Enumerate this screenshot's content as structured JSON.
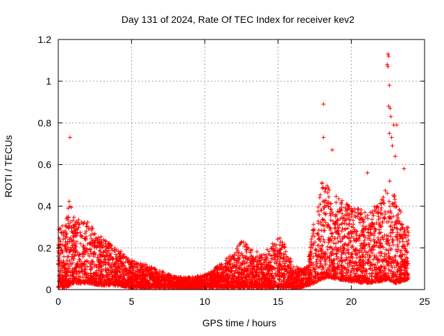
{
  "chart_data": {
    "type": "scatter",
    "title": "Day 131 of 2024, Rate Of TEC Index for receiver kev2",
    "xlabel": "GPS time / hours",
    "ylabel": "ROTI / TECUs",
    "xlim": [
      0,
      25
    ],
    "ylim": [
      0,
      1.2
    ],
    "xticks": [
      0,
      5,
      10,
      15,
      20,
      25
    ],
    "xtick_labels": [
      "0",
      "5",
      "10",
      "15",
      "20",
      "25"
    ],
    "yticks": [
      0,
      0.2,
      0.4,
      0.6,
      0.8,
      1.0,
      1.2
    ],
    "ytick_labels": [
      "0",
      "0.2",
      "0.4",
      "0.6",
      "0.8",
      "1",
      "1.2"
    ],
    "grid": true,
    "marker": "+",
    "series": [
      {
        "name": "ROTI",
        "color": "#ff0000",
        "envelope": {
          "description": "approximate visible band of the dense point cloud (hour, low, high)",
          "hours": [
            0,
            0.5,
            0.8,
            1,
            2,
            3,
            4,
            5,
            6,
            7,
            8,
            9,
            10,
            11,
            12,
            12.5,
            13,
            14,
            15,
            15.5,
            16,
            16.5,
            17,
            17.5,
            18,
            18.5,
            19,
            20,
            21,
            22,
            22.5,
            23,
            23.5,
            23.9
          ],
          "low": [
            0.01,
            0.01,
            0.02,
            0.03,
            0.03,
            0.02,
            0.02,
            0.01,
            0.01,
            0.01,
            0.01,
            0.01,
            0.01,
            0.01,
            0.01,
            0.01,
            0.01,
            0.01,
            0.01,
            0.01,
            0.01,
            0.01,
            0.02,
            0.03,
            0.05,
            0.06,
            0.05,
            0.04,
            0.03,
            0.04,
            0.05,
            0.03,
            0.04,
            0.05
          ],
          "high": [
            0.3,
            0.32,
            0.48,
            0.35,
            0.33,
            0.25,
            0.2,
            0.14,
            0.12,
            0.09,
            0.06,
            0.06,
            0.07,
            0.12,
            0.18,
            0.25,
            0.2,
            0.17,
            0.26,
            0.22,
            0.12,
            0.1,
            0.12,
            0.35,
            0.52,
            0.5,
            0.45,
            0.4,
            0.38,
            0.42,
            0.55,
            0.45,
            0.35,
            0.3
          ]
        },
        "notable_points": [
          {
            "x": 0.8,
            "y": 0.73
          },
          {
            "x": 18.1,
            "y": 0.89
          },
          {
            "x": 18.1,
            "y": 0.73
          },
          {
            "x": 18.7,
            "y": 0.67
          },
          {
            "x": 22.5,
            "y": 1.13
          },
          {
            "x": 22.55,
            "y": 1.12
          },
          {
            "x": 22.45,
            "y": 1.08
          },
          {
            "x": 22.5,
            "y": 1.07
          },
          {
            "x": 22.6,
            "y": 0.98
          },
          {
            "x": 22.55,
            "y": 0.88
          },
          {
            "x": 22.65,
            "y": 0.87
          },
          {
            "x": 22.7,
            "y": 0.83
          },
          {
            "x": 22.9,
            "y": 0.79
          },
          {
            "x": 23.1,
            "y": 0.79
          },
          {
            "x": 22.6,
            "y": 0.75
          },
          {
            "x": 22.75,
            "y": 0.73
          },
          {
            "x": 22.8,
            "y": 0.69
          },
          {
            "x": 23.0,
            "y": 0.64
          },
          {
            "x": 23.6,
            "y": 0.58
          },
          {
            "x": 21.1,
            "y": 0.56
          }
        ]
      }
    ]
  }
}
